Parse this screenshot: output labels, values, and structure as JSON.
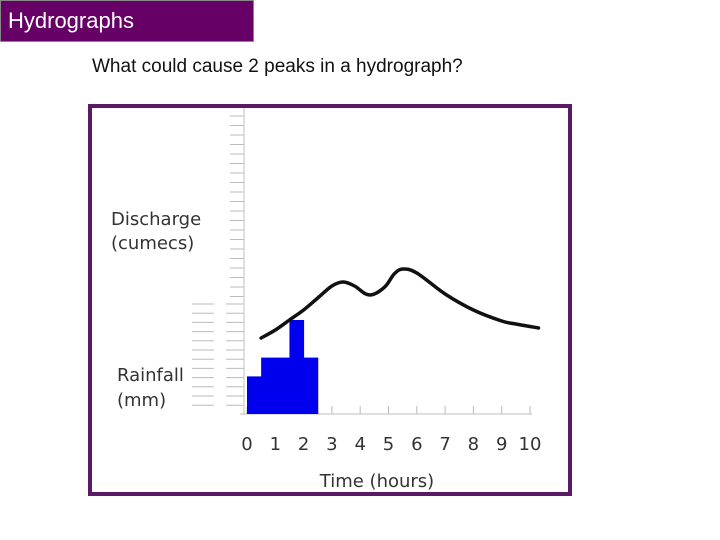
{
  "slide": {
    "title": "Hydrographs",
    "question": "What could cause 2 peaks in a hydrograph?"
  },
  "colors": {
    "title_bg": "#660066",
    "frame": "#5b1a66",
    "rainfall": "#0000ee",
    "discharge": "#111111"
  },
  "chart_data": {
    "type": "line",
    "xlabel": "Time (hours)",
    "x_ticks": [
      "0",
      "1",
      "2",
      "3",
      "4",
      "5",
      "6",
      "7",
      "8",
      "9",
      "10"
    ],
    "xlim": [
      0,
      10
    ],
    "grid": false,
    "series": [
      {
        "name": "Discharge (cumecs)",
        "type": "line",
        "x": [
          0.5,
          1.0,
          1.5,
          2.0,
          2.5,
          3.0,
          3.4,
          3.8,
          4.2,
          4.5,
          4.9,
          5.2,
          5.5,
          6.0,
          7.0,
          8.0,
          9.0,
          9.5,
          10.3
        ],
        "y": [
          5.5,
          5.9,
          6.4,
          6.9,
          7.5,
          8.1,
          8.3,
          8.1,
          7.7,
          7.7,
          8.1,
          8.7,
          8.95,
          8.75,
          7.7,
          6.9,
          6.35,
          6.2,
          6.0
        ]
      },
      {
        "name": "Rainfall (mm)",
        "type": "bar",
        "bins": [
          [
            0,
            0.5
          ],
          [
            0.5,
            1.0
          ],
          [
            1.0,
            1.5
          ],
          [
            1.5,
            2.0
          ],
          [
            2.0,
            2.5
          ]
        ],
        "values": [
          2,
          3,
          3,
          5,
          3
        ]
      }
    ]
  }
}
